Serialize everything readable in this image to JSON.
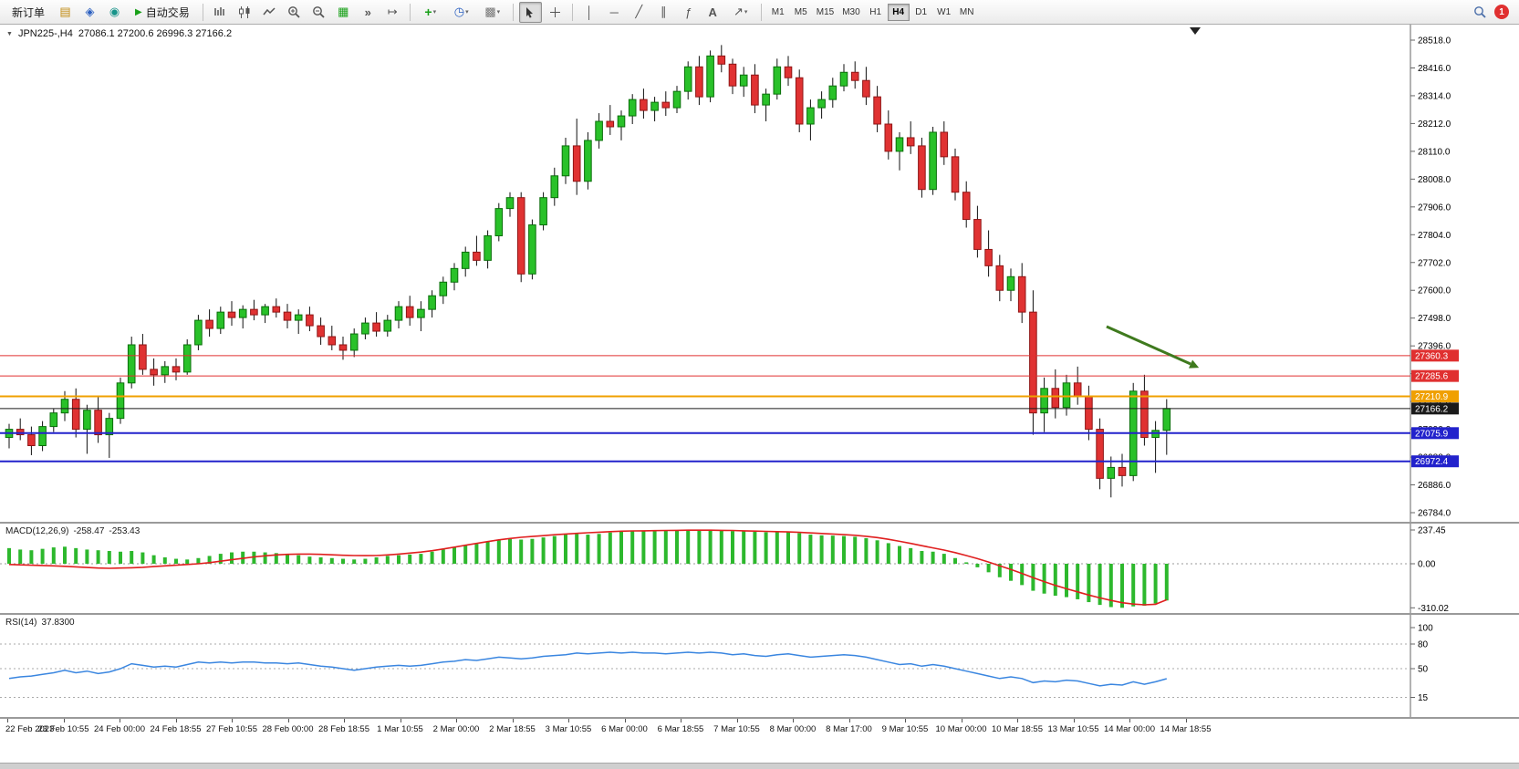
{
  "toolbar": {
    "new_order_label": "新订单",
    "auto_trading_label": "自动交易",
    "timeframes": [
      "M1",
      "M5",
      "M15",
      "M30",
      "H1",
      "H4",
      "D1",
      "W1",
      "MN"
    ],
    "active_timeframe": "H4",
    "notification_count": "1"
  },
  "chart": {
    "symbol_period": "JPN225-,H4",
    "ohlc_text": "27086.1 27200.6 26996.3 27166.2"
  },
  "macd": {
    "title": "MACD(12,26,9)",
    "value_main": "-258.47",
    "value_signal": "-253.43"
  },
  "rsi": {
    "title": "RSI(14)",
    "value": "37.8300"
  },
  "chart_data": [
    {
      "type": "candlestick",
      "symbol": "JPN225-",
      "timeframe": "H4",
      "current_ohlc": {
        "open": 27086.1,
        "high": 27200.6,
        "low": 26996.3,
        "close": 27166.2
      },
      "price_axis_ticks": [
        28518.0,
        28416.0,
        28314.0,
        28212.0,
        28110.0,
        28008.0,
        27906.0,
        27804.0,
        27702.0,
        27600.0,
        27498.0,
        27396.0,
        27294.0,
        27192.0,
        27090.0,
        26988.0,
        26886.0,
        26784.0
      ],
      "levels": [
        {
          "value": 27360.3,
          "color": "#e03030",
          "width": 1
        },
        {
          "value": 27285.6,
          "color": "#e03030",
          "width": 1
        },
        {
          "value": 27210.9,
          "color": "#f0a000",
          "width": 2
        },
        {
          "value": 27166.2,
          "color": "#1a1a1a",
          "width": 1
        },
        {
          "value": 27075.9,
          "color": "#2222cc",
          "width": 2
        },
        {
          "value": 26972.4,
          "color": "#2222cc",
          "width": 2
        }
      ],
      "up_color": "#29c129",
      "down_color": "#e03232",
      "arrow_annotation": {
        "color": "#3f7a1e",
        "from": {
          "bar": 98.6,
          "price": 27467
        },
        "to": {
          "bar": 106.9,
          "price": 27316
        }
      },
      "candles": [
        [
          27060,
          27110,
          27020,
          27090
        ],
        [
          27090,
          27130,
          27050,
          27070
        ],
        [
          27070,
          27100,
          26995,
          27030
        ],
        [
          27030,
          27120,
          27010,
          27100
        ],
        [
          27100,
          27165,
          27080,
          27150
        ],
        [
          27150,
          27230,
          27120,
          27200
        ],
        [
          27200,
          27240,
          27060,
          27090
        ],
        [
          27090,
          27180,
          27000,
          27160
        ],
        [
          27160,
          27210,
          27040,
          27070
        ],
        [
          27070,
          27150,
          26985,
          27130
        ],
        [
          27130,
          27280,
          27110,
          27260
        ],
        [
          27260,
          27430,
          27240,
          27400
        ],
        [
          27400,
          27440,
          27290,
          27310
        ],
        [
          27310,
          27350,
          27250,
          27290
        ],
        [
          27290,
          27340,
          27260,
          27320
        ],
        [
          27320,
          27350,
          27270,
          27300
        ],
        [
          27300,
          27420,
          27290,
          27400
        ],
        [
          27400,
          27510,
          27380,
          27490
        ],
        [
          27490,
          27530,
          27430,
          27460
        ],
        [
          27460,
          27540,
          27440,
          27520
        ],
        [
          27520,
          27560,
          27470,
          27500
        ],
        [
          27500,
          27545,
          27460,
          27530
        ],
        [
          27530,
          27565,
          27490,
          27510
        ],
        [
          27510,
          27550,
          27480,
          27540
        ],
        [
          27540,
          27570,
          27500,
          27520
        ],
        [
          27520,
          27550,
          27460,
          27490
        ],
        [
          27490,
          27530,
          27440,
          27510
        ],
        [
          27510,
          27540,
          27450,
          27470
        ],
        [
          27470,
          27500,
          27400,
          27430
        ],
        [
          27430,
          27470,
          27380,
          27400
        ],
        [
          27400,
          27430,
          27345,
          27380
        ],
        [
          27380,
          27460,
          27355,
          27440
        ],
        [
          27440,
          27500,
          27420,
          27480
        ],
        [
          27480,
          27520,
          27430,
          27450
        ],
        [
          27450,
          27510,
          27430,
          27490
        ],
        [
          27490,
          27560,
          27460,
          27540
        ],
        [
          27540,
          27580,
          27470,
          27500
        ],
        [
          27500,
          27560,
          27450,
          27530
        ],
        [
          27530,
          27600,
          27500,
          27580
        ],
        [
          27580,
          27650,
          27550,
          27630
        ],
        [
          27630,
          27700,
          27600,
          27680
        ],
        [
          27680,
          27760,
          27650,
          27740
        ],
        [
          27740,
          27800,
          27690,
          27710
        ],
        [
          27710,
          27820,
          27680,
          27800
        ],
        [
          27800,
          27920,
          27780,
          27900
        ],
        [
          27900,
          27960,
          27870,
          27940
        ],
        [
          27940,
          27960,
          27630,
          27660
        ],
        [
          27660,
          27860,
          27640,
          27840
        ],
        [
          27840,
          27960,
          27820,
          27940
        ],
        [
          27940,
          28050,
          27910,
          28020
        ],
        [
          28020,
          28160,
          27990,
          28130
        ],
        [
          28130,
          28230,
          27950,
          28000
        ],
        [
          28000,
          28180,
          27970,
          28150
        ],
        [
          28150,
          28250,
          28120,
          28220
        ],
        [
          28220,
          28280,
          28170,
          28200
        ],
        [
          28200,
          28260,
          28150,
          28240
        ],
        [
          28240,
          28320,
          28210,
          28300
        ],
        [
          28300,
          28340,
          28230,
          28260
        ],
        [
          28260,
          28310,
          28220,
          28290
        ],
        [
          28290,
          28330,
          28240,
          28270
        ],
        [
          28270,
          28350,
          28250,
          28330
        ],
        [
          28330,
          28440,
          28300,
          28420
        ],
        [
          28420,
          28460,
          28280,
          28310
        ],
        [
          28310,
          28480,
          28290,
          28460
        ],
        [
          28460,
          28500,
          28400,
          28430
        ],
        [
          28430,
          28450,
          28320,
          28350
        ],
        [
          28350,
          28420,
          28310,
          28390
        ],
        [
          28390,
          28430,
          28250,
          28280
        ],
        [
          28280,
          28340,
          28220,
          28320
        ],
        [
          28320,
          28450,
          28300,
          28420
        ],
        [
          28420,
          28460,
          28350,
          28380
        ],
        [
          28380,
          28410,
          28180,
          28210
        ],
        [
          28210,
          28300,
          28150,
          28270
        ],
        [
          28270,
          28330,
          28230,
          28300
        ],
        [
          28300,
          28380,
          28270,
          28350
        ],
        [
          28350,
          28430,
          28330,
          28400
        ],
        [
          28400,
          28440,
          28340,
          28370
        ],
        [
          28370,
          28420,
          28280,
          28310
        ],
        [
          28310,
          28350,
          28180,
          28210
        ],
        [
          28210,
          28260,
          28080,
          28110
        ],
        [
          28110,
          28180,
          28040,
          28160
        ],
        [
          28160,
          28220,
          28100,
          28130
        ],
        [
          28130,
          28160,
          27940,
          27970
        ],
        [
          27970,
          28200,
          27950,
          28180
        ],
        [
          28180,
          28220,
          28060,
          28090
        ],
        [
          28090,
          28120,
          27930,
          27960
        ],
        [
          27960,
          28000,
          27830,
          27860
        ],
        [
          27860,
          27910,
          27720,
          27750
        ],
        [
          27750,
          27820,
          27650,
          27690
        ],
        [
          27690,
          27730,
          27560,
          27600
        ],
        [
          27600,
          27680,
          27560,
          27650
        ],
        [
          27650,
          27700,
          27480,
          27520
        ],
        [
          27520,
          27600,
          27070,
          27150
        ],
        [
          27150,
          27280,
          27080,
          27240
        ],
        [
          27240,
          27310,
          27130,
          27170
        ],
        [
          27170,
          27290,
          27140,
          27260
        ],
        [
          27260,
          27320,
          27180,
          27210
        ],
        [
          27210,
          27250,
          27050,
          27090
        ],
        [
          27090,
          27130,
          26870,
          26910
        ],
        [
          26910,
          26990,
          26840,
          26950
        ],
        [
          26950,
          27000,
          26880,
          26920
        ],
        [
          26920,
          27260,
          26900,
          27230
        ],
        [
          27230,
          27290,
          27030,
          27060
        ],
        [
          27060,
          27120,
          26930,
          27086
        ],
        [
          27086.1,
          27200.6,
          26996.3,
          27166.2
        ]
      ],
      "x_labels": [
        "22 Feb 2023",
        "23 Feb 10:55",
        "24 Feb 00:00",
        "24 Feb 18:55",
        "27 Feb 10:55",
        "28 Feb 00:00",
        "28 Feb 18:55",
        "1 Mar 10:55",
        "2 Mar 00:00",
        "2 Mar 18:55",
        "3 Mar 10:55",
        "6 Mar 00:00",
        "6 Mar 18:55",
        "7 Mar 10:55",
        "8 Mar 00:00",
        "8 Mar 17:00",
        "9 Mar 10:55",
        "10 Mar 00:00",
        "10 Mar 18:55",
        "13 Mar 10:55",
        "14 Mar 00:00",
        "14 Mar 18:55"
      ]
    },
    {
      "type": "bar",
      "name": "MACD(12,26,9)",
      "current_main": -258.47,
      "current_signal": -253.43,
      "axis_ticks": [
        237.45,
        0,
        -310.02
      ],
      "bar_color": "#2db82d",
      "signal_color": "#e01f1f",
      "histogram": [
        110,
        100,
        95,
        105,
        115,
        120,
        110,
        100,
        95,
        90,
        85,
        90,
        80,
        60,
        45,
        35,
        30,
        40,
        55,
        70,
        80,
        85,
        85,
        80,
        75,
        70,
        60,
        50,
        45,
        40,
        35,
        30,
        35,
        45,
        55,
        60,
        65,
        70,
        85,
        100,
        115,
        130,
        140,
        155,
        170,
        175,
        170,
        175,
        185,
        195,
        205,
        210,
        205,
        210,
        220,
        225,
        230,
        228,
        230,
        232,
        235,
        237,
        236,
        237,
        235,
        230,
        228,
        225,
        222,
        225,
        222,
        215,
        205,
        200,
        198,
        195,
        190,
        180,
        165,
        145,
        125,
        110,
        90,
        85,
        70,
        40,
        10,
        -25,
        -60,
        -95,
        -120,
        -150,
        -190,
        -210,
        -225,
        -235,
        -250,
        -270,
        -290,
        -305,
        -310,
        -300,
        -295,
        -280,
        -258.47
      ],
      "signal": [
        -5,
        -8,
        -10,
        -12,
        -15,
        -18,
        -22,
        -26,
        -30,
        -32,
        -30,
        -28,
        -25,
        -20,
        -15,
        -10,
        -5,
        0,
        8,
        18,
        28,
        38,
        48,
        56,
        62,
        66,
        68,
        68,
        66,
        63,
        60,
        58,
        57,
        58,
        62,
        68,
        75,
        82,
        92,
        104,
        117,
        130,
        143,
        156,
        168,
        178,
        186,
        192,
        198,
        204,
        209,
        214,
        218,
        222,
        226,
        229,
        231,
        232,
        233,
        234,
        235,
        236,
        236,
        236,
        235,
        234,
        232,
        230,
        228,
        226,
        224,
        221,
        217,
        213,
        209,
        205,
        200,
        193,
        184,
        172,
        158,
        143,
        127,
        112,
        96,
        78,
        58,
        36,
        12,
        -14,
        -40,
        -68,
        -98,
        -126,
        -152,
        -176,
        -198,
        -220,
        -240,
        -258,
        -274,
        -284,
        -289,
        -285,
        -253.43
      ]
    },
    {
      "type": "line",
      "name": "RSI(14)",
      "period": 14,
      "current": 37.83,
      "axis_ticks": [
        100,
        80,
        50,
        15
      ],
      "level_lines": [
        80,
        50,
        15
      ],
      "line_color": "#3a86e0",
      "values": [
        38,
        40,
        41,
        43,
        45,
        48,
        45,
        47,
        44,
        46,
        50,
        56,
        54,
        52,
        53,
        52,
        55,
        58,
        57,
        58,
        57,
        58,
        58,
        57,
        57,
        56,
        57,
        55,
        53,
        52,
        50,
        48,
        50,
        52,
        53,
        54,
        53,
        54,
        56,
        58,
        59,
        61,
        60,
        62,
        64,
        63,
        62,
        63,
        65,
        66,
        67,
        69,
        68,
        69,
        70,
        69,
        70,
        69,
        69,
        68,
        69,
        70,
        69,
        70,
        69,
        67,
        68,
        66,
        65,
        67,
        68,
        66,
        64,
        65,
        66,
        67,
        66,
        64,
        61,
        58,
        55,
        56,
        53,
        55,
        53,
        50,
        47,
        44,
        41,
        38,
        40,
        38,
        33,
        35,
        34,
        36,
        35,
        32,
        29,
        31,
        30,
        34,
        31,
        34,
        37.83
      ]
    }
  ]
}
